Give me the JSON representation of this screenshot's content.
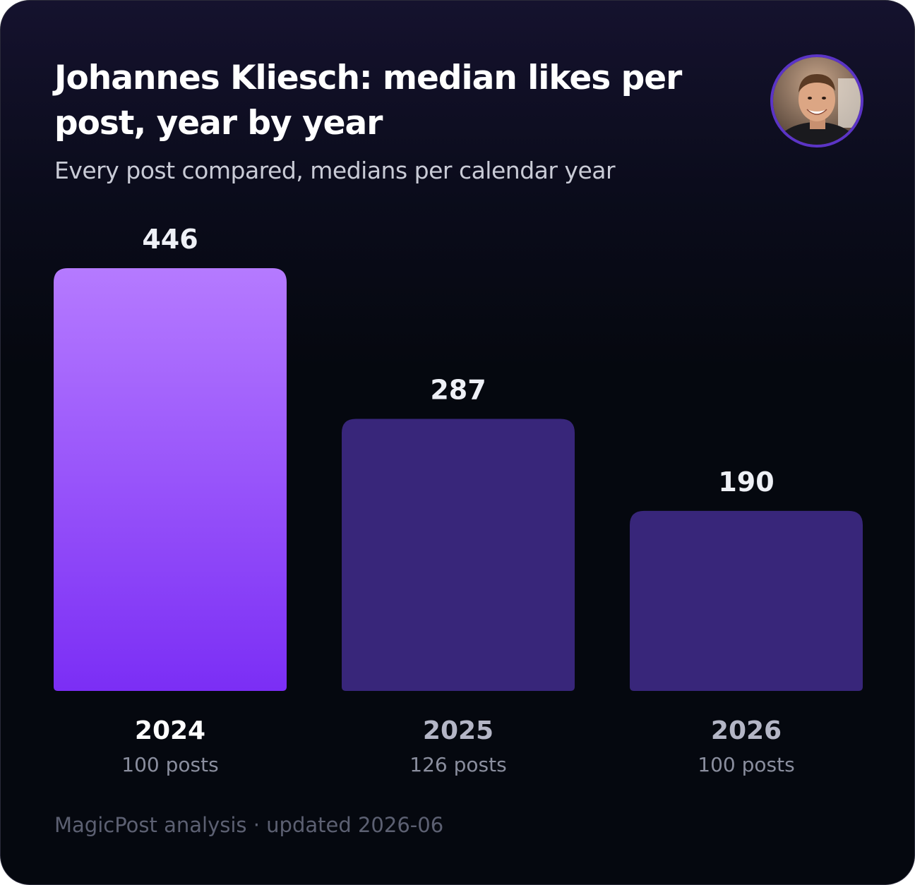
{
  "title": "Johannes Kliesch: median likes per post, year by year",
  "subtitle": "Every post compared, medians per calendar year",
  "avatar_icon": "person-portrait",
  "footer": "MagicPost analysis · updated 2026-06",
  "colors": {
    "highlight_bar_top": "#b57aff",
    "highlight_bar_bottom": "#7b2ef5",
    "regular_bar": "#38267a",
    "highlight_year_text": "#ffffff",
    "regular_year_text": "#b4b6c6"
  },
  "chart_data": {
    "type": "bar",
    "categories": [
      "2024",
      "2025",
      "2026"
    ],
    "values": [
      446,
      287,
      190
    ],
    "value_labels": [
      "446",
      "287",
      "190"
    ],
    "post_counts": [
      "100 posts",
      "126 posts",
      "100 posts"
    ],
    "highlighted": "2024",
    "title": "Johannes Kliesch: median likes per post, year by year",
    "subtitle": "Every post compared, medians per calendar year",
    "xlabel": "",
    "ylabel": "",
    "ylim": [
      0,
      446
    ],
    "grid": false,
    "legend": "none"
  }
}
